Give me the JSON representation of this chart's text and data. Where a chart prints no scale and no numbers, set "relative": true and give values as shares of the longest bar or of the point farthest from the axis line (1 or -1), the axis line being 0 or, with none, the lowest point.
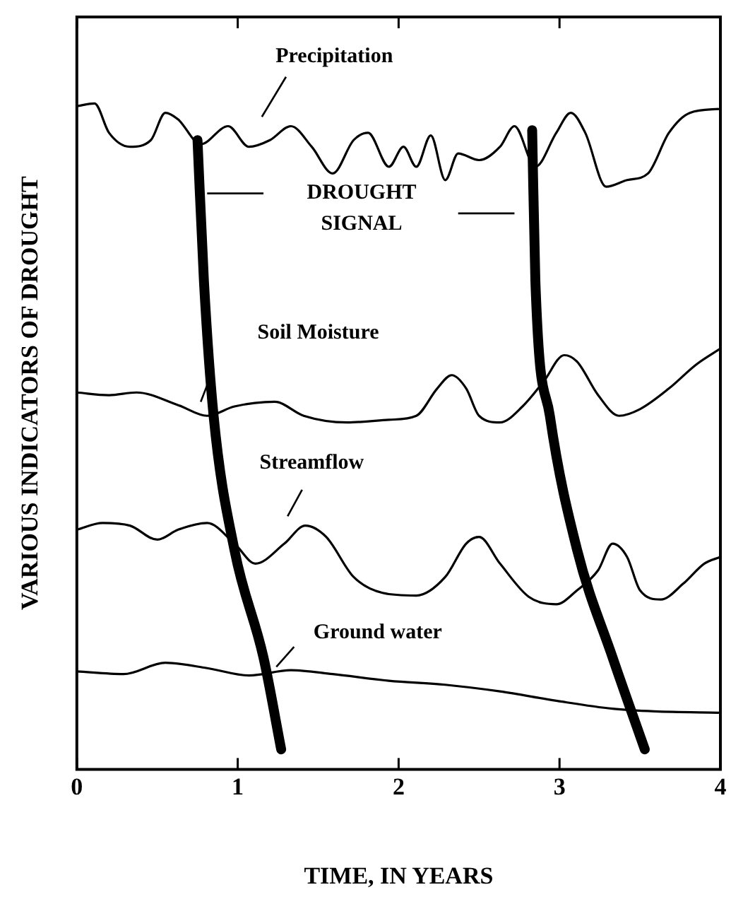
{
  "chart_data": {
    "type": "line",
    "relative": true,
    "xlabel": "TIME, IN YEARS",
    "ylabel": "VARIOUS INDICATORS OF DROUGHT",
    "xlim": [
      0,
      4
    ],
    "xticks": [
      0,
      1,
      2,
      3,
      4
    ],
    "grid": false,
    "annotations": [
      "DROUGHT SIGNAL"
    ],
    "series": [
      {
        "name": "Precipitation",
        "color": "#000000",
        "x": [
          0,
          0.11,
          0.2,
          0.33,
          0.46,
          0.55,
          0.63,
          0.77,
          0.94,
          1.07,
          1.2,
          1.33,
          1.46,
          1.59,
          1.72,
          1.81,
          1.94,
          2.03,
          2.11,
          2.2,
          2.29,
          2.37,
          2.5,
          2.63,
          2.72,
          2.85,
          2.98,
          3.07,
          3.16,
          3.29,
          3.42,
          3.55,
          3.68,
          3.81,
          4
        ],
        "values": [
          0.996,
          1.0,
          0.956,
          0.935,
          0.945,
          0.986,
          0.976,
          0.939,
          0.966,
          0.935,
          0.945,
          0.966,
          0.935,
          0.895,
          0.945,
          0.956,
          0.905,
          0.935,
          0.905,
          0.952,
          0.885,
          0.925,
          0.915,
          0.935,
          0.966,
          0.905,
          0.956,
          0.986,
          0.956,
          0.875,
          0.885,
          0.895,
          0.956,
          0.986,
          0.992
        ]
      },
      {
        "name": "Soil Moisture",
        "color": "#000000",
        "x": [
          0,
          0.2,
          0.37,
          0.63,
          0.81,
          0.98,
          1.23,
          1.41,
          1.68,
          1.94,
          2.11,
          2.24,
          2.33,
          2.42,
          2.5,
          2.63,
          2.77,
          2.9,
          3.03,
          3.11,
          3.24,
          3.37,
          3.5,
          3.68,
          3.85,
          4
        ],
        "values": [
          0.566,
          0.562,
          0.566,
          0.547,
          0.531,
          0.545,
          0.552,
          0.531,
          0.521,
          0.525,
          0.531,
          0.572,
          0.592,
          0.572,
          0.531,
          0.521,
          0.545,
          0.582,
          0.622,
          0.612,
          0.562,
          0.531,
          0.541,
          0.572,
          0.608,
          0.632
        ]
      },
      {
        "name": "Streamflow",
        "color": "#000000",
        "x": [
          0,
          0.16,
          0.33,
          0.5,
          0.63,
          0.81,
          0.98,
          1.11,
          1.29,
          1.42,
          1.55,
          1.72,
          1.9,
          2.11,
          2.29,
          2.42,
          2.5,
          2.63,
          2.81,
          2.98,
          3.11,
          3.24,
          3.33,
          3.42,
          3.5,
          3.63,
          3.77,
          3.9,
          4
        ],
        "values": [
          0.36,
          0.37,
          0.366,
          0.345,
          0.36,
          0.37,
          0.339,
          0.309,
          0.339,
          0.366,
          0.349,
          0.289,
          0.265,
          0.261,
          0.289,
          0.339,
          0.349,
          0.309,
          0.259,
          0.248,
          0.269,
          0.299,
          0.339,
          0.319,
          0.269,
          0.255,
          0.279,
          0.309,
          0.319
        ]
      },
      {
        "name": "Ground water",
        "color": "#000000",
        "x": [
          0,
          0.29,
          0.55,
          0.81,
          1.07,
          1.33,
          1.59,
          1.94,
          2.29,
          2.63,
          2.98,
          3.33,
          3.59,
          4
        ],
        "values": [
          0.147,
          0.143,
          0.16,
          0.152,
          0.141,
          0.149,
          0.143,
          0.133,
          0.127,
          0.117,
          0.103,
          0.091,
          0.087,
          0.085
        ]
      },
      {
        "color": "#000000",
        "x": [
          0.75,
          0.79,
          0.85,
          0.98,
          1.16,
          1.27
        ],
        "values": [
          0.945,
          0.733,
          0.531,
          0.329,
          0.168,
          0.03
        ]
      },
      {
        "color": "#000000",
        "x": [
          2.83,
          2.85,
          2.94,
          3.11,
          3.33,
          3.53
        ],
        "values": [
          0.96,
          0.733,
          0.531,
          0.329,
          0.168,
          0.03
        ]
      }
    ]
  }
}
